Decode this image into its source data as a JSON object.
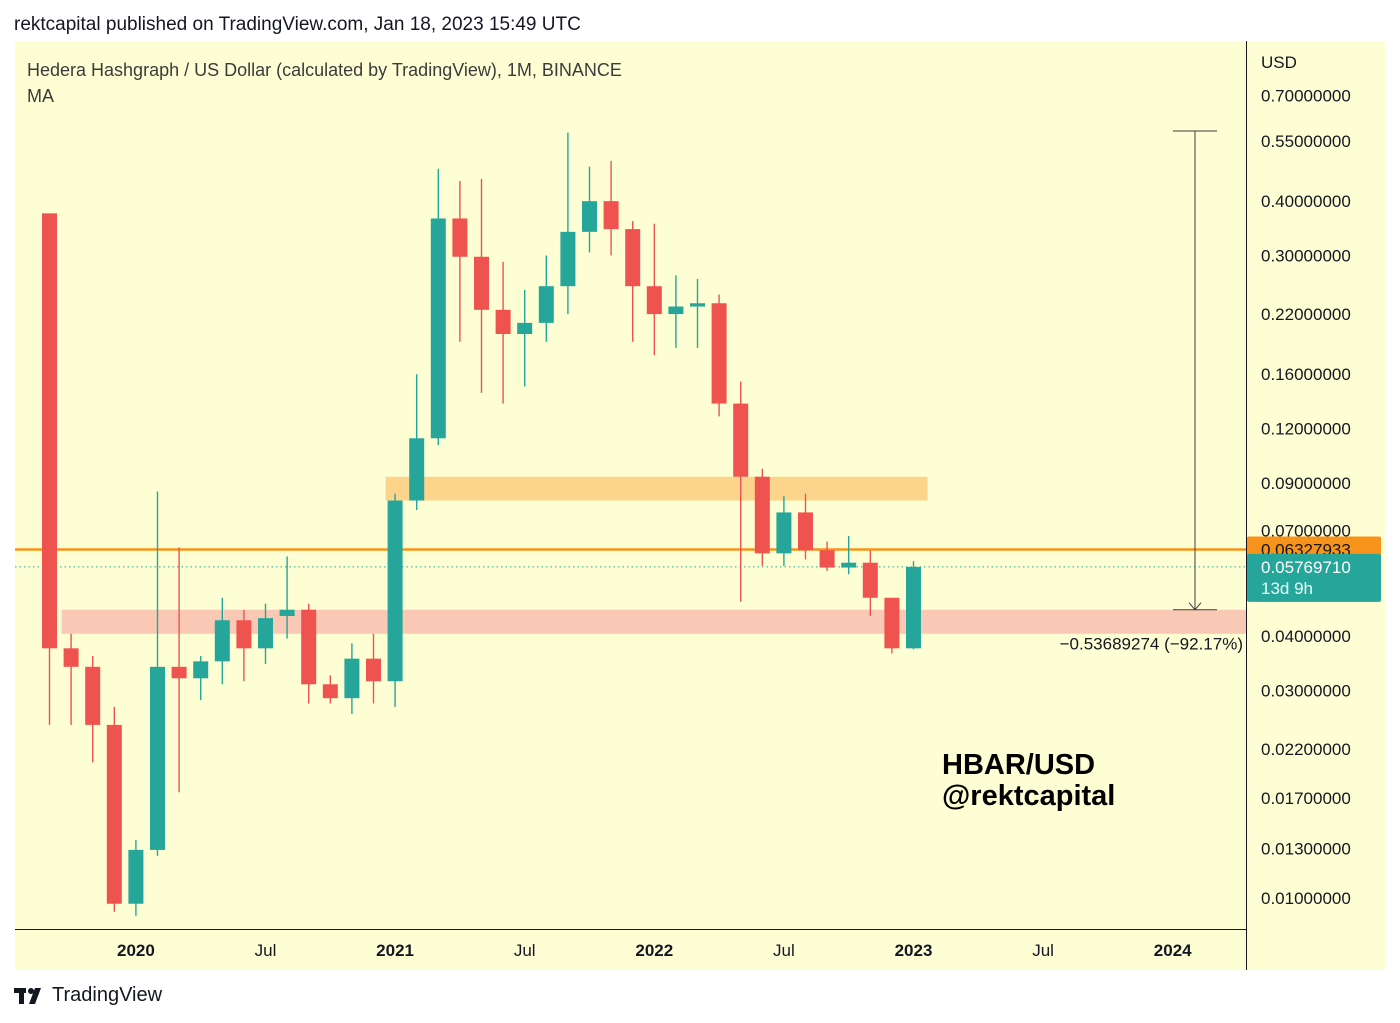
{
  "header": {
    "published_by": "rektcapital published on TradingView.com, Jan 18, 2023 15:49 UTC"
  },
  "chart_info": {
    "symbol_line": "Hedera Hashgraph / US Dollar (calculated by TradingView), 1M, BINANCE",
    "indicator_line": "MA"
  },
  "watermark": {
    "line1": "HBAR/USD",
    "line2": "@rektcapital"
  },
  "footer": {
    "brand": "TradingView"
  },
  "colors": {
    "background": "#fefed4",
    "up": "#26a69a",
    "down": "#ef5350",
    "orange_line": "#f7931a",
    "orange_zone": "#fcd48c",
    "pink_zone": "#f9c9b5",
    "axis_text": "#131722"
  },
  "chart_data": {
    "type": "candlestick",
    "title": "Hedera Hashgraph / US Dollar (calculated by TradingView), 1M, BINANCE",
    "price_scale": "log",
    "y_axis_unit": "USD",
    "y_ticks": [
      "0.70000000",
      "0.55000000",
      "0.40000000",
      "0.30000000",
      "0.22000000",
      "0.16000000",
      "0.12000000",
      "0.09000000",
      "0.07000000",
      "0.04000000",
      "0.03000000",
      "0.02200000",
      "0.01700000",
      "0.01300000",
      "0.01000000"
    ],
    "x_ticks": [
      {
        "label": "2020",
        "bold": true
      },
      {
        "label": "Jul",
        "bold": false
      },
      {
        "label": "2021",
        "bold": true
      },
      {
        "label": "Jul",
        "bold": false
      },
      {
        "label": "2022",
        "bold": true
      },
      {
        "label": "Jul",
        "bold": false
      },
      {
        "label": "2023",
        "bold": true
      },
      {
        "label": "Jul",
        "bold": false
      },
      {
        "label": "2024",
        "bold": true
      }
    ],
    "x_tick_months": [
      "2020-01",
      "2020-07",
      "2021-01",
      "2021-07",
      "2022-01",
      "2022-07",
      "2023-01",
      "2023-07",
      "2024-01"
    ],
    "candles": [
      {
        "month": "2019-09",
        "o": 0.375,
        "h": 0.375,
        "l": 0.025,
        "c": 0.0375
      },
      {
        "month": "2019-10",
        "o": 0.0375,
        "h": 0.0405,
        "l": 0.025,
        "c": 0.034
      },
      {
        "month": "2019-11",
        "o": 0.034,
        "h": 0.036,
        "l": 0.0205,
        "c": 0.025
      },
      {
        "month": "2019-12",
        "o": 0.025,
        "h": 0.0275,
        "l": 0.0093,
        "c": 0.0097
      },
      {
        "month": "2020-01",
        "o": 0.0097,
        "h": 0.0136,
        "l": 0.0091,
        "c": 0.0129
      },
      {
        "month": "2020-02",
        "o": 0.0129,
        "h": 0.086,
        "l": 0.0125,
        "c": 0.034
      },
      {
        "month": "2020-03",
        "o": 0.034,
        "h": 0.064,
        "l": 0.0175,
        "c": 0.032
      },
      {
        "month": "2020-04",
        "o": 0.032,
        "h": 0.036,
        "l": 0.0285,
        "c": 0.035
      },
      {
        "month": "2020-05",
        "o": 0.035,
        "h": 0.049,
        "l": 0.031,
        "c": 0.0435
      },
      {
        "month": "2020-06",
        "o": 0.0435,
        "h": 0.046,
        "l": 0.0315,
        "c": 0.0375
      },
      {
        "month": "2020-07",
        "o": 0.0375,
        "h": 0.0475,
        "l": 0.0345,
        "c": 0.044
      },
      {
        "month": "2020-08",
        "o": 0.0445,
        "h": 0.061,
        "l": 0.0395,
        "c": 0.046
      },
      {
        "month": "2020-09",
        "o": 0.046,
        "h": 0.0475,
        "l": 0.028,
        "c": 0.031
      },
      {
        "month": "2020-10",
        "o": 0.031,
        "h": 0.0325,
        "l": 0.028,
        "c": 0.0288
      },
      {
        "month": "2020-11",
        "o": 0.0288,
        "h": 0.0385,
        "l": 0.0265,
        "c": 0.0355
      },
      {
        "month": "2020-12",
        "o": 0.0355,
        "h": 0.0405,
        "l": 0.028,
        "c": 0.0315
      },
      {
        "month": "2021-01",
        "o": 0.0315,
        "h": 0.085,
        "l": 0.0275,
        "c": 0.082
      },
      {
        "month": "2021-02",
        "o": 0.082,
        "h": 0.16,
        "l": 0.078,
        "c": 0.114
      },
      {
        "month": "2021-03",
        "o": 0.114,
        "h": 0.475,
        "l": 0.11,
        "c": 0.365
      },
      {
        "month": "2021-04",
        "o": 0.365,
        "h": 0.445,
        "l": 0.19,
        "c": 0.298
      },
      {
        "month": "2021-05",
        "o": 0.298,
        "h": 0.45,
        "l": 0.145,
        "c": 0.225
      },
      {
        "month": "2021-06",
        "o": 0.225,
        "h": 0.29,
        "l": 0.137,
        "c": 0.198
      },
      {
        "month": "2021-07",
        "o": 0.198,
        "h": 0.25,
        "l": 0.15,
        "c": 0.21
      },
      {
        "month": "2021-08",
        "o": 0.21,
        "h": 0.3,
        "l": 0.19,
        "c": 0.255
      },
      {
        "month": "2021-09",
        "o": 0.255,
        "h": 0.575,
        "l": 0.22,
        "c": 0.34
      },
      {
        "month": "2021-10",
        "o": 0.34,
        "h": 0.48,
        "l": 0.305,
        "c": 0.4
      },
      {
        "month": "2021-11",
        "o": 0.4,
        "h": 0.495,
        "l": 0.3,
        "c": 0.345
      },
      {
        "month": "2021-12",
        "o": 0.345,
        "h": 0.36,
        "l": 0.19,
        "c": 0.255
      },
      {
        "month": "2022-01",
        "o": 0.255,
        "h": 0.355,
        "l": 0.177,
        "c": 0.22
      },
      {
        "month": "2022-02",
        "o": 0.22,
        "h": 0.27,
        "l": 0.184,
        "c": 0.229
      },
      {
        "month": "2022-03",
        "o": 0.229,
        "h": 0.265,
        "l": 0.184,
        "c": 0.233
      },
      {
        "month": "2022-04",
        "o": 0.233,
        "h": 0.244,
        "l": 0.128,
        "c": 0.137
      },
      {
        "month": "2022-05",
        "o": 0.137,
        "h": 0.154,
        "l": 0.048,
        "c": 0.093
      },
      {
        "month": "2022-06",
        "o": 0.093,
        "h": 0.097,
        "l": 0.058,
        "c": 0.062
      },
      {
        "month": "2022-07",
        "o": 0.062,
        "h": 0.084,
        "l": 0.058,
        "c": 0.077
      },
      {
        "month": "2022-08",
        "o": 0.077,
        "h": 0.085,
        "l": 0.06,
        "c": 0.063
      },
      {
        "month": "2022-09",
        "o": 0.063,
        "h": 0.066,
        "l": 0.0565,
        "c": 0.0575
      },
      {
        "month": "2022-10",
        "o": 0.0575,
        "h": 0.068,
        "l": 0.0555,
        "c": 0.059
      },
      {
        "month": "2022-11",
        "o": 0.059,
        "h": 0.063,
        "l": 0.0445,
        "c": 0.049
      },
      {
        "month": "2022-12",
        "o": 0.049,
        "h": 0.049,
        "l": 0.0365,
        "c": 0.0375
      },
      {
        "month": "2023-01",
        "o": 0.0375,
        "h": 0.0595,
        "l": 0.0373,
        "c": 0.0576971
      }
    ],
    "horizontal_line": {
      "value": 0.06327933,
      "label": "0.06327933"
    },
    "zones": [
      {
        "name": "orange-resistance-zone",
        "from_month": "2021-01",
        "to_month": "2023-01",
        "low": 0.082,
        "high": 0.093
      },
      {
        "name": "pink-support-zone",
        "from_month": "2019-10",
        "to_month": "2024-03",
        "low": 0.0405,
        "high": 0.046
      }
    ],
    "last_price": {
      "value": "0.05769710",
      "countdown": "13d 9h"
    },
    "measurement": {
      "from": 0.58,
      "to": 0.046,
      "label": "−0.53689274 (−92.17%)"
    }
  }
}
